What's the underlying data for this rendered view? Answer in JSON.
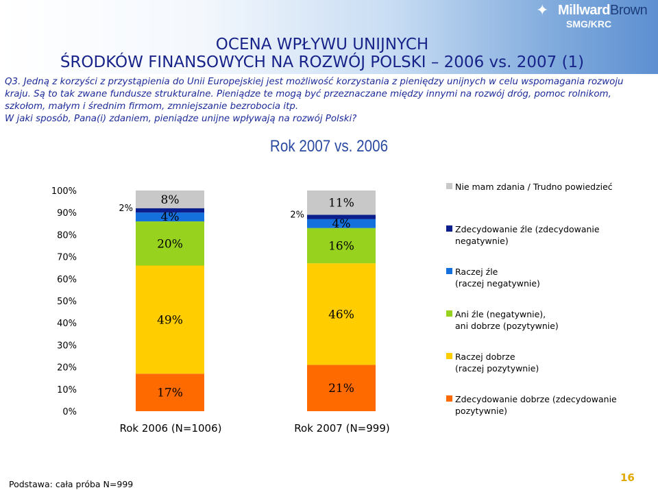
{
  "header": {
    "title_line1": "OCENA WPŁYWU UNIJNYCH",
    "title_line2": "ŚRODKÓW FINANSOWYCH NA ROZWÓJ POLSKI – 2006 vs. 2007 (1)",
    "logo_brand_a": "Millward",
    "logo_brand_b": "Brown",
    "logo_sub": "SMG/KRC"
  },
  "question": {
    "lines": [
      "Q3. Jedną z korzyści z przystąpienia do Unii Europejskiej jest możliwość korzystania z pieniędzy unijnych w celu wspomagania rozwoju",
      "kraju. Są to tak zwane fundusze strukturalne. Pieniądze te mogą być przeznaczane między innymi na rozwój dróg, pomoc rolnikom,",
      "szkołom, małym i średnim firmom, zmniejszanie bezrobocia itp.",
      "W jaki sposób, Pana(i) zdaniem, pieniądze unijne wpływają na rozwój Polski?"
    ]
  },
  "subtitle": "Rok 2007 vs. 2006",
  "colors": {
    "nie_mam_zdania": "#c8c8c8",
    "zdecydowanie_zle": "#0a1e8c",
    "raczej_zle": "#1470dc",
    "ani_zle_ani_dobrze": "#96d21e",
    "raczej_dobrze": "#ffcd00",
    "zdecydowanie_dobrze": "#ff6a00"
  },
  "chart_data": {
    "type": "bar",
    "stacked": true,
    "title": "Rok 2007 vs. 2006",
    "categories": [
      "Rok 2006 (N=1006)",
      "Rok 2007 (N=999)"
    ],
    "ylim": [
      0,
      100
    ],
    "yticks": [
      "0%",
      "10%",
      "20%",
      "30%",
      "40%",
      "50%",
      "60%",
      "70%",
      "80%",
      "90%",
      "100%"
    ],
    "series": [
      {
        "name": "Zdecydowanie dobrze (zdecydowanie pozytywnie)",
        "color_key": "zdecydowanie_dobrze",
        "values": [
          17,
          21
        ],
        "labels": [
          "17%",
          "21%"
        ]
      },
      {
        "name": "Raczej dobrze (raczej pozytywnie)",
        "color_key": "raczej_dobrze",
        "values": [
          49,
          46
        ],
        "labels": [
          "49%",
          "46%"
        ]
      },
      {
        "name": "Ani źle (negatywnie), ani dobrze (pozytywnie)",
        "color_key": "ani_zle_ani_dobrze",
        "values": [
          20,
          16
        ],
        "labels": [
          "20%",
          "16%"
        ]
      },
      {
        "name": "Raczej źle (raczej negatywnie)",
        "color_key": "raczej_zle",
        "values": [
          4,
          4
        ],
        "labels": [
          "4%",
          "4%"
        ]
      },
      {
        "name": "Zdecydowanie źle (zdecydowanie negatywnie)",
        "color_key": "zdecydowanie_zle",
        "values": [
          2,
          2
        ],
        "labels": [
          "2%",
          "2%"
        ]
      },
      {
        "name": "Nie mam zdania / Trudno powiedzieć",
        "color_key": "nie_mam_zdania",
        "values": [
          8,
          11
        ],
        "labels": [
          "8%",
          "11%"
        ]
      }
    ],
    "legend": [
      {
        "color_key": "nie_mam_zdania",
        "lines": [
          "Nie mam zdania / Trudno powiedzieć"
        ]
      },
      {
        "color_key": "zdecydowanie_zle",
        "lines": [
          "Zdecydowanie źle (zdecydowanie",
          "negatywnie)"
        ]
      },
      {
        "color_key": "raczej_zle",
        "lines": [
          "Raczej źle",
          "(raczej negatywnie)"
        ]
      },
      {
        "color_key": "ani_zle_ani_dobrze",
        "lines": [
          "Ani źle (negatywnie),",
          "ani dobrze (pozytywnie)"
        ]
      },
      {
        "color_key": "raczej_dobrze",
        "lines": [
          "Raczej dobrze",
          "(raczej pozytywnie)"
        ]
      },
      {
        "color_key": "zdecydowanie_dobrze",
        "lines": [
          "Zdecydowanie dobrze (zdecydowanie",
          "pozytywnie)"
        ]
      }
    ]
  },
  "footnote": "Podstawa: cała próba N=999",
  "page_number": "16"
}
